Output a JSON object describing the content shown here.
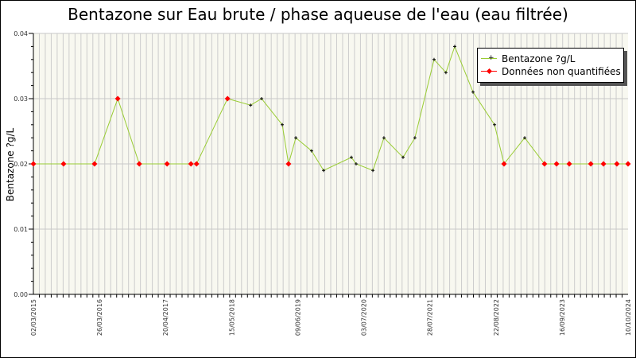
{
  "chart_data": {
    "type": "line",
    "title": "Bentazone sur Eau brute / phase aqueuse de l'eau (eau filtrée)",
    "xlabel": "",
    "ylabel": "Bentazone ?g/L",
    "xlim": [
      "2015-03-02",
      "2024-10-10"
    ],
    "ylim": [
      0,
      0.04
    ],
    "x_tick_labels": [
      "02/03/2015",
      "26/03/2016",
      "20/04/2017",
      "15/05/2018",
      "09/06/2019",
      "03/07/2020",
      "28/07/2021",
      "22/08/2022",
      "16/09/2023",
      "10/10/2024"
    ],
    "y_tick_labels": [
      "0.00",
      "0.01",
      "0.02",
      "0.03",
      "0.04"
    ],
    "grid": true,
    "legend_position": "top-right",
    "series": [
      {
        "name": "Bentazone ?g/L",
        "color": "#99cc33",
        "marker_color": "#000000"
      },
      {
        "name": "Données non quantifiées",
        "color": "#ff0000"
      }
    ],
    "points": [
      {
        "date": "2015-03-02",
        "value": 0.02,
        "nq": true
      },
      {
        "date": "2015-08-27",
        "value": 0.02,
        "nq": true
      },
      {
        "date": "2016-02-26",
        "value": 0.02,
        "nq": true
      },
      {
        "date": "2016-07-12",
        "value": 0.03,
        "nq": true
      },
      {
        "date": "2016-11-16",
        "value": 0.02,
        "nq": true
      },
      {
        "date": "2017-04-29",
        "value": 0.02,
        "nq": true
      },
      {
        "date": "2017-09-17",
        "value": 0.02,
        "nq": true
      },
      {
        "date": "2017-10-20",
        "value": 0.02,
        "nq": true
      },
      {
        "date": "2018-04-21",
        "value": 0.03,
        "nq": true
      },
      {
        "date": "2018-09-04",
        "value": 0.029,
        "nq": false
      },
      {
        "date": "2018-11-08",
        "value": 0.03,
        "nq": false
      },
      {
        "date": "2019-03-10",
        "value": 0.026,
        "nq": false
      },
      {
        "date": "2019-04-16",
        "value": 0.02,
        "nq": true
      },
      {
        "date": "2019-05-29",
        "value": 0.024,
        "nq": false
      },
      {
        "date": "2019-08-30",
        "value": 0.022,
        "nq": false
      },
      {
        "date": "2019-11-09",
        "value": 0.019,
        "nq": false
      },
      {
        "date": "2020-04-21",
        "value": 0.021,
        "nq": false
      },
      {
        "date": "2020-05-19",
        "value": 0.02,
        "nq": false
      },
      {
        "date": "2020-08-26",
        "value": 0.019,
        "nq": false
      },
      {
        "date": "2020-10-30",
        "value": 0.024,
        "nq": false
      },
      {
        "date": "2021-02-20",
        "value": 0.021,
        "nq": false
      },
      {
        "date": "2021-05-01",
        "value": 0.024,
        "nq": false
      },
      {
        "date": "2021-08-22",
        "value": 0.036,
        "nq": false
      },
      {
        "date": "2021-10-31",
        "value": 0.034,
        "nq": false
      },
      {
        "date": "2021-12-22",
        "value": 0.038,
        "nq": false
      },
      {
        "date": "2022-04-09",
        "value": 0.031,
        "nq": false
      },
      {
        "date": "2022-08-14",
        "value": 0.026,
        "nq": false
      },
      {
        "date": "2022-10-09",
        "value": 0.02,
        "nq": true
      },
      {
        "date": "2023-02-08",
        "value": 0.024,
        "nq": false
      },
      {
        "date": "2023-06-05",
        "value": 0.02,
        "nq": true
      },
      {
        "date": "2023-08-15",
        "value": 0.02,
        "nq": true
      },
      {
        "date": "2023-10-29",
        "value": 0.02,
        "nq": true
      },
      {
        "date": "2024-03-04",
        "value": 0.02,
        "nq": true
      },
      {
        "date": "2024-05-18",
        "value": 0.02,
        "nq": true
      },
      {
        "date": "2024-08-05",
        "value": 0.02,
        "nq": true
      },
      {
        "date": "2024-10-10",
        "value": 0.02,
        "nq": true
      }
    ]
  }
}
